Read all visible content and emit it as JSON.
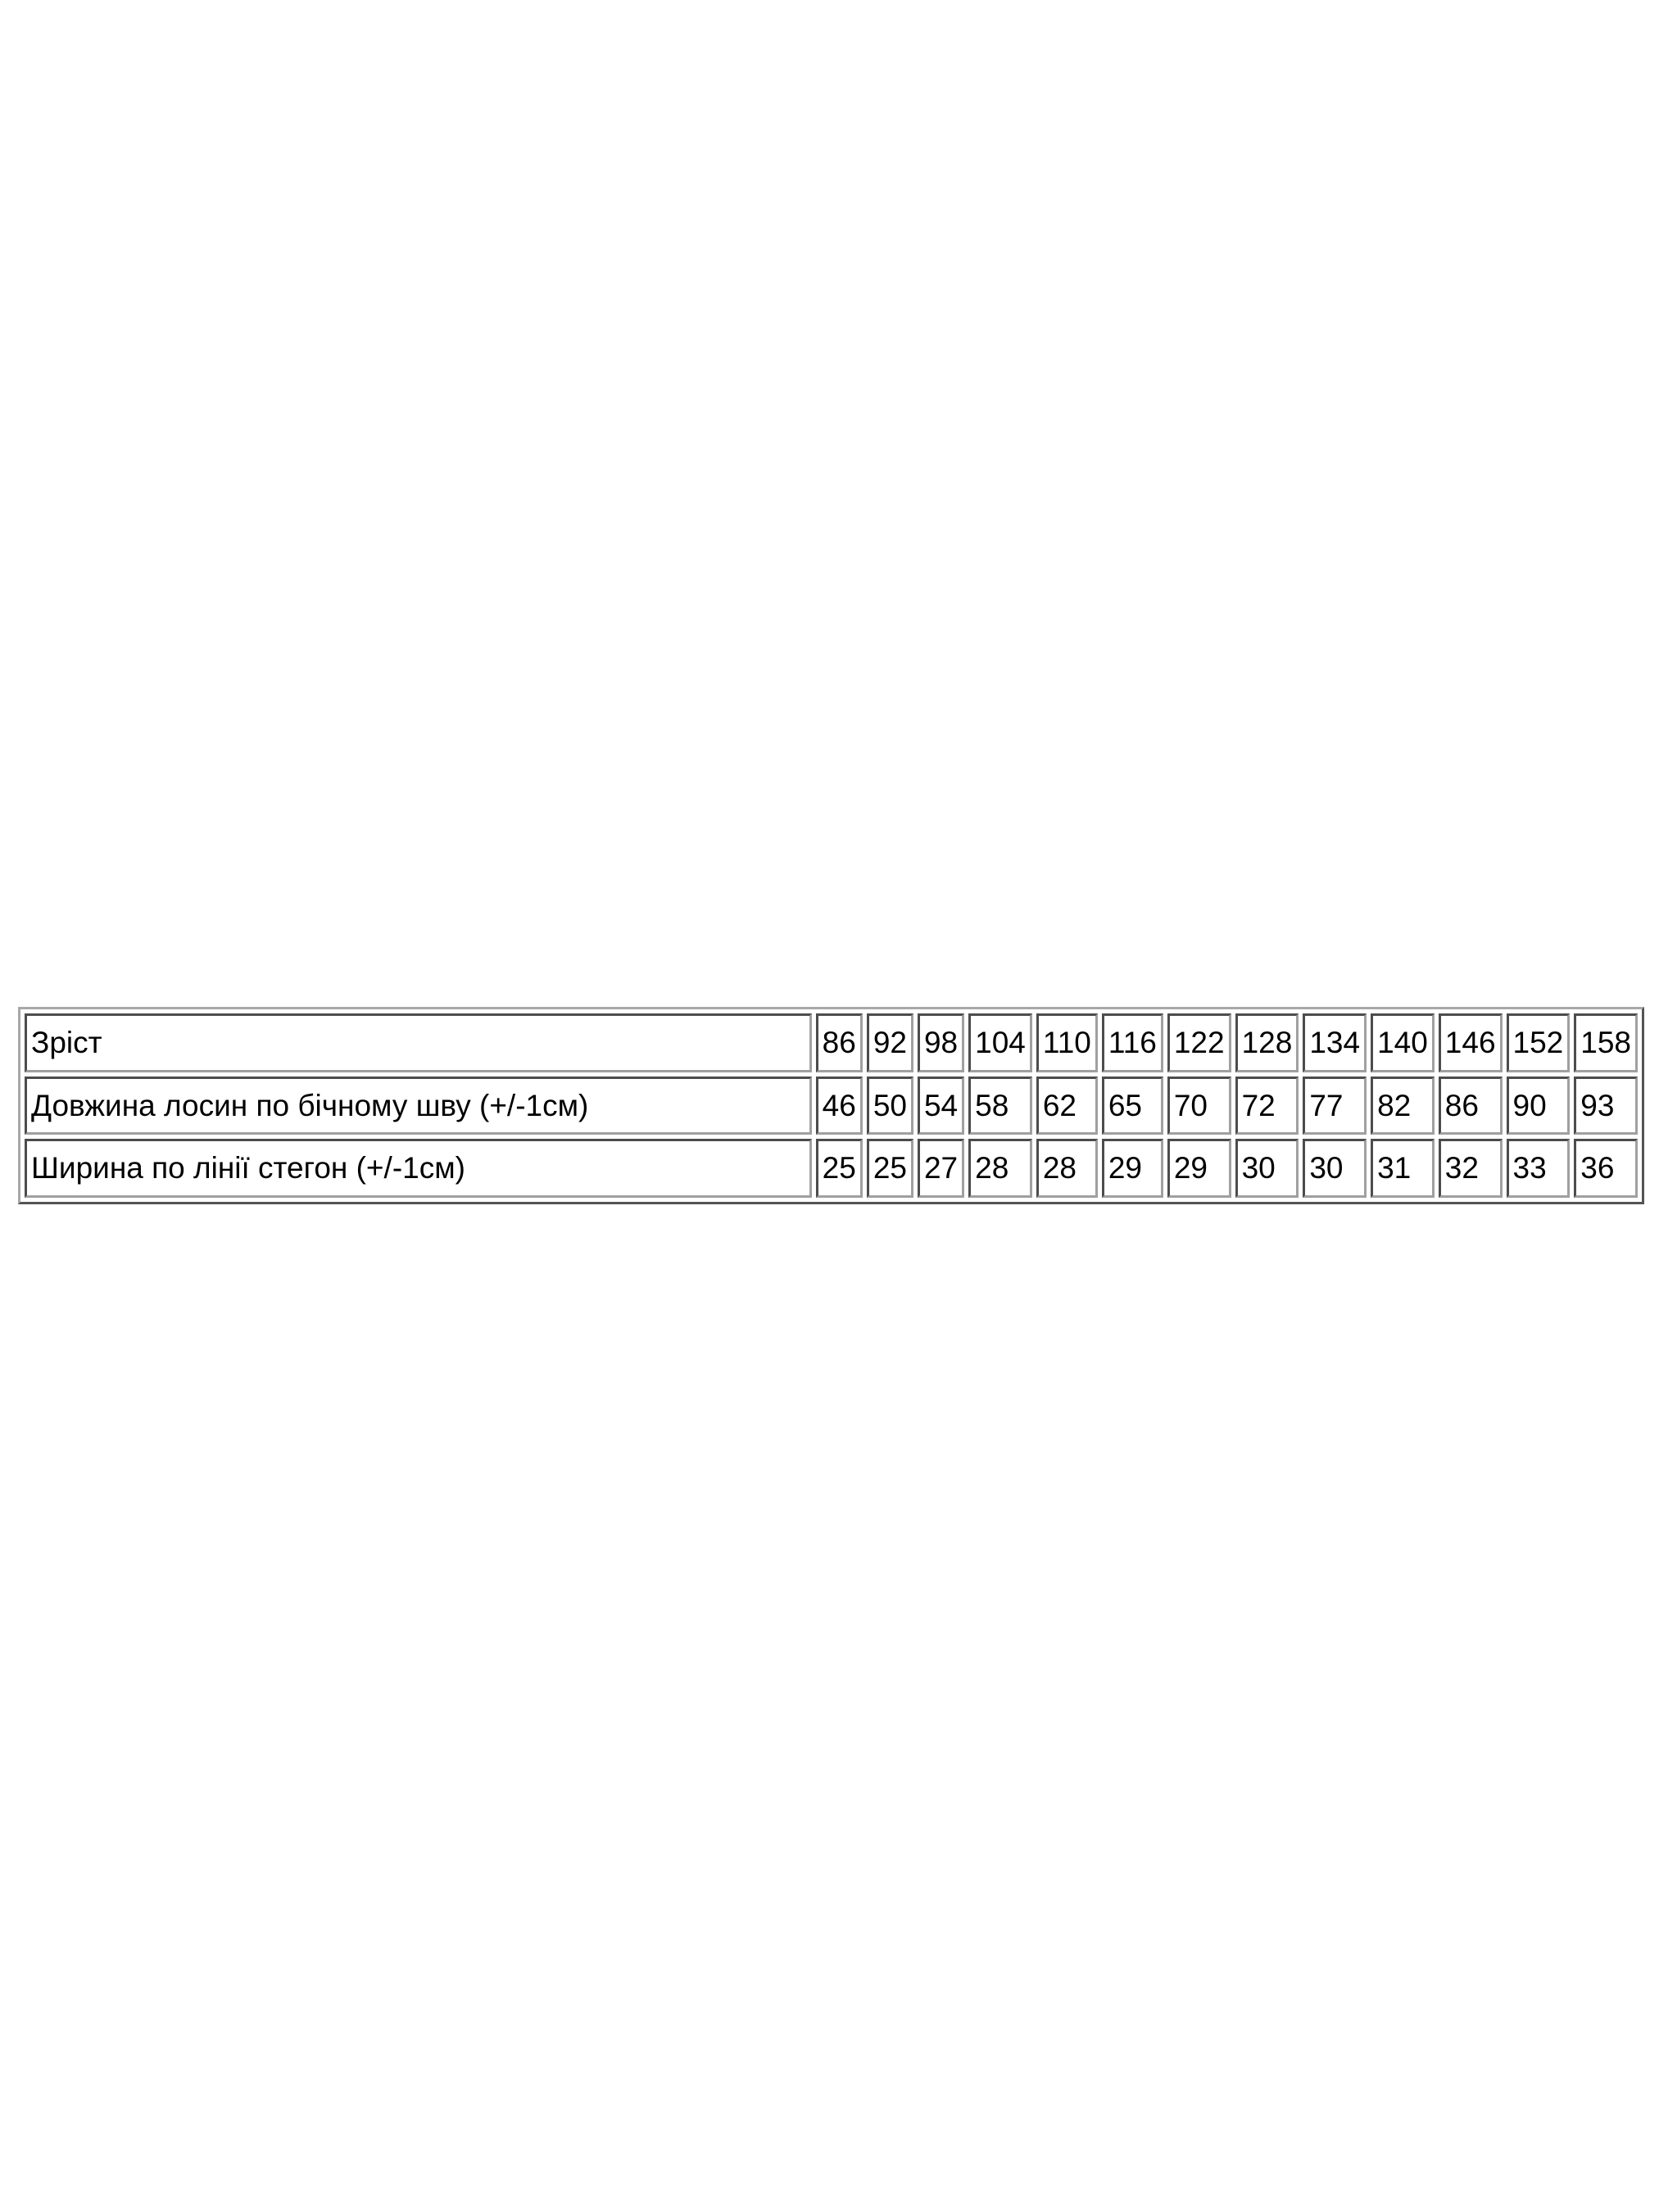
{
  "page": {
    "background_color": "#ffffff",
    "text_color": "#000000",
    "table_border_color": "#a0a0a0"
  },
  "size_table": {
    "rows": [
      {
        "label": "Зріст",
        "values": [
          "86",
          "92",
          "98",
          "104",
          "110",
          "116",
          "122",
          "128",
          "134",
          "140",
          "146",
          "152",
          "158"
        ]
      },
      {
        "label": "Довжина лосин по бічному шву (+/-1см)",
        "values": [
          "46",
          "50",
          "54",
          "58",
          "62",
          "65",
          "70",
          "72",
          "77",
          "82",
          "86",
          "90",
          "93"
        ]
      },
      {
        "label": "Ширина по лінії стегон (+/-1см)",
        "values": [
          "25",
          "25",
          "27",
          "28",
          "28",
          "29",
          "29",
          "30",
          "30",
          "31",
          "32",
          "33",
          "36"
        ]
      }
    ]
  },
  "chart_data": {
    "type": "table",
    "title": "",
    "categories": [
      86,
      92,
      98,
      104,
      110,
      116,
      122,
      128,
      134,
      140,
      146,
      152,
      158
    ],
    "series": [
      {
        "name": "Зріст",
        "values": [
          86,
          92,
          98,
          104,
          110,
          116,
          122,
          128,
          134,
          140,
          146,
          152,
          158
        ]
      },
      {
        "name": "Довжина лосин по бічному шву (+/-1см)",
        "values": [
          46,
          50,
          54,
          58,
          62,
          65,
          70,
          72,
          77,
          82,
          86,
          90,
          93
        ]
      },
      {
        "name": "Ширина по лінії стегон (+/-1см)",
        "values": [
          25,
          25,
          27,
          28,
          28,
          29,
          29,
          30,
          30,
          31,
          32,
          33,
          36
        ]
      }
    ],
    "layout_hints": {
      "grid": "double-bordered cells, gray 3D borders, white background",
      "first_column": "row labels, left-aligned",
      "value_alignment": "left"
    }
  }
}
